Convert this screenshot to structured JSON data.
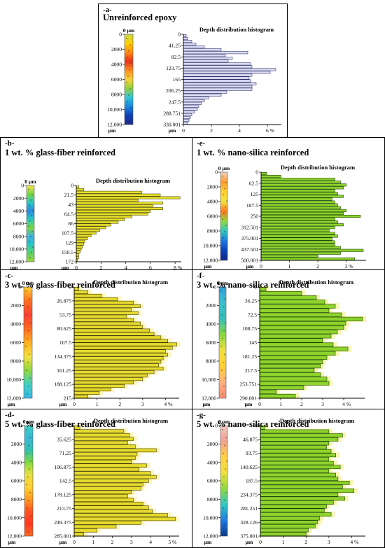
{
  "chart_data": [
    {
      "id": "a",
      "type": "bar",
      "orientation": "horizontal",
      "panel_label": "-a-",
      "title": "Unreinforced epoxy",
      "histogram_title": "Depth distribution histogram",
      "depth_axis": {
        "top_label": "0 µm",
        "ticks": [
          "0",
          "2000",
          "4000",
          "6000",
          "8000",
          "10,000",
          "12,000"
        ],
        "unit": "µm"
      },
      "x": {
        "ticks": [
          "0",
          "2",
          "4",
          "6 %"
        ],
        "unit": "µm",
        "max": 7
      },
      "y": {
        "ticks": [
          "0",
          "41.25",
          "82.5",
          "123.75",
          "165",
          "206.25",
          "247.5",
          "288.751",
          "330.001"
        ],
        "max": 330.001
      },
      "colors": {
        "bar": "#d9dcf2",
        "edge": "#2a2a66",
        "glow": null
      },
      "values": [
        0.2,
        0.3,
        0.6,
        0.9,
        1.5,
        2.7,
        4.6,
        3.0,
        3.5,
        3.2,
        4.8,
        4.9,
        6.6,
        6.2,
        4.9,
        4.7,
        4.8,
        5.2,
        4.9,
        4.9,
        3.1,
        2.7,
        1.8,
        1.5,
        1.3,
        1.1,
        1.0,
        0.8,
        0.6,
        0.5,
        0.4,
        0.3
      ],
      "stripe": [
        "#c9d84a",
        "#ffd000",
        "#ff8a10",
        "#e8301c",
        "#ff9020",
        "#f7d23a",
        "#8fd13e",
        "#33c6d8",
        "#1a86e0",
        "#1040b8",
        "#1c2888"
      ]
    },
    {
      "id": "b",
      "type": "bar",
      "orientation": "horizontal",
      "panel_label": "-b-",
      "title": "1 wt. % glass-fiber reinforced",
      "histogram_title": "Depth distribution histogram",
      "depth_axis": {
        "top_label": "0 µm",
        "ticks": [
          "0",
          "2000",
          "4000",
          "6000",
          "8000",
          "10,000",
          "12,000"
        ],
        "unit": "µm"
      },
      "x": {
        "ticks": [
          "0",
          "2",
          "4",
          "6",
          "8 %"
        ],
        "unit": "µm",
        "max": 8.5
      },
      "y": {
        "ticks": [
          "0",
          "21.5",
          "43",
          "64.5",
          "86",
          "107.5",
          "129",
          "150.5",
          "172"
        ],
        "max": 172
      },
      "colors": {
        "bar": "#e8df2a",
        "edge": "#3a3a00",
        "glow": null
      },
      "values": [
        0.2,
        0.6,
        5.3,
        6.8,
        8.4,
        5.0,
        7.0,
        6.2,
        7.0,
        6.0,
        5.8,
        4.5,
        3.9,
        3.4,
        2.8,
        2.4,
        1.9,
        1.6,
        1.2,
        0.9,
        0.7,
        0.6,
        0.5,
        0.4,
        0.3,
        0.2,
        0.2,
        0.1
      ],
      "stripe": [
        "#f3e04a",
        "#7ad840",
        "#28c9c4",
        "#2b86e0",
        "#28c9c4",
        "#7ad840",
        "#3fb0e0",
        "#28c9c4",
        "#5fd060",
        "#9ad63a"
      ]
    },
    {
      "id": "c",
      "type": "bar",
      "orientation": "horizontal",
      "panel_label": "-c-",
      "title": "3 wt. % glass-fiber reinforced",
      "histogram_title": "Depth distribution histogram",
      "depth_axis": {
        "top_label": "0 µm",
        "ticks": [
          "0",
          "2000",
          "4000",
          "6000",
          "8000",
          "10,000",
          "12,000"
        ],
        "unit": "µm"
      },
      "x": {
        "ticks": [
          "0",
          "1",
          "2",
          "3",
          "4 %"
        ],
        "unit": "µm",
        "max": 4.6
      },
      "y": {
        "ticks": [
          "0",
          "26.875",
          "53.75",
          "80.625",
          "107.5",
          "134.375",
          "161.25",
          "188.125",
          "215"
        ],
        "max": 215
      },
      "colors": {
        "bar": "#e6da2e",
        "edge": "#333300",
        "glow": "#fff1a8"
      },
      "values": [
        0.2,
        0.6,
        1.2,
        1.9,
        2.6,
        2.9,
        2.5,
        2.8,
        2.3,
        2.6,
        2.9,
        3.0,
        3.3,
        3.5,
        3.8,
        4.1,
        4.5,
        4.3,
        4.0,
        4.1,
        3.9,
        3.8,
        3.7,
        3.9,
        3.5,
        3.2,
        3.0,
        2.6,
        2.2,
        1.6,
        1.1,
        0.6
      ],
      "stripe": [
        "#ffd030",
        "#ff7020",
        "#ff4030",
        "#ff6a20",
        "#ffb020",
        "#f6e040",
        "#90d840",
        "#40d0c0",
        "#38b8e8"
      ]
    },
    {
      "id": "d",
      "type": "bar",
      "orientation": "horizontal",
      "panel_label": "-d-",
      "title": "5 wt. % glass-fiber reinforced",
      "histogram_title": "Depth distribution histogram",
      "depth_axis": {
        "top_label": "0 µm",
        "ticks": [
          "0",
          "2000",
          "4000",
          "6000",
          "8000",
          "10,000",
          "12,000"
        ],
        "unit": "µm"
      },
      "x": {
        "ticks": [
          "0",
          "1",
          "2",
          "3",
          "4",
          "5 %"
        ],
        "unit": "µm",
        "max": 5.5
      },
      "y": {
        "ticks": [
          "0",
          "35.625",
          "71.25",
          "106.875",
          "142.5",
          "178.125",
          "213.75",
          "249.375",
          "285.001"
        ],
        "max": 285.001
      },
      "colors": {
        "bar": "#e6da2e",
        "edge": "#333300",
        "glow": "#fff1a8"
      },
      "values": [
        0.3,
        2.6,
        2.9,
        3.1,
        2.8,
        3.2,
        4.3,
        3.3,
        3.2,
        3.0,
        3.8,
        3.4,
        4.0,
        4.3,
        3.9,
        3.6,
        3.5,
        3.0,
        2.8,
        3.1,
        3.6,
        3.9,
        4.1,
        4.9,
        5.3,
        3.5,
        2.2,
        1.2,
        0.5
      ],
      "stripe": [
        "#3ad0c0",
        "#3ab8d8",
        "#30c0b0",
        "#80d840",
        "#e8e040",
        "#ffd030",
        "#ff9a20",
        "#ff5020",
        "#ff3a20",
        "#ff6a20"
      ]
    },
    {
      "id": "e",
      "type": "bar",
      "orientation": "horizontal",
      "panel_label": "-e-",
      "title": "1 wt. % nano-silica reinforced",
      "histogram_title": "Depth distribution histogram",
      "depth_axis": {
        "top_label": "0 µm",
        "ticks": [
          "0",
          "2000",
          "4000",
          "6000",
          "8000",
          "10,000",
          "12,000"
        ],
        "unit": "µm"
      },
      "x": {
        "ticks": [
          "0",
          "1",
          "2",
          "3 %"
        ],
        "unit": "µm",
        "max": 3.7
      },
      "y": {
        "ticks": [
          "0",
          "62.5",
          "125",
          "187.5",
          "250",
          "312.501",
          "375.001",
          "437.501",
          "500.001"
        ],
        "max": 500.001
      },
      "colors": {
        "bar": "#8ed22c",
        "edge": "#0f3a00",
        "glow": null
      },
      "values": [
        0.2,
        0.7,
        2.6,
        2.8,
        3.0,
        2.9,
        2.6,
        2.7,
        2.9,
        2.5,
        2.6,
        2.7,
        2.8,
        3.0,
        2.9,
        3.5,
        2.6,
        2.7,
        2.9,
        2.6,
        2.4,
        2.6,
        2.7,
        2.5,
        2.6,
        2.6,
        2.8,
        3.6,
        2.8,
        2.0,
        3.3
      ],
      "stripe": [
        "#f4d2c0",
        "#ff9a30",
        "#ffd030",
        "#f0e040",
        "#ff7a20",
        "#90d840",
        "#30c8c0",
        "#1e7ae0",
        "#0a40b8",
        "#10288a"
      ]
    },
    {
      "id": "f",
      "type": "bar",
      "orientation": "horizontal",
      "panel_label": "-f-",
      "title": "3 wt. % nano-silica reinforced",
      "histogram_title": "Depth distribution histogram",
      "depth_axis": {
        "top_label": "0 µm",
        "ticks": [
          "0",
          "2000",
          "4000",
          "6000",
          "8000",
          "10,000",
          "12,000"
        ],
        "unit": "µm"
      },
      "x": {
        "ticks": [
          "0",
          "1",
          "2",
          "3",
          "4 %"
        ],
        "unit": "µm",
        "max": 5.0
      },
      "y": {
        "ticks": [
          "0",
          "36.25",
          "72.5",
          "108.75",
          "145",
          "181.25",
          "217.5",
          "253.751",
          "290.001"
        ],
        "max": 290.001
      },
      "colors": {
        "bar": "#8ed22c",
        "edge": "#0f3a00",
        "glow": "#f6f29a"
      },
      "values": [
        0.3,
        2.0,
        2.7,
        3.1,
        3.6,
        3.3,
        3.9,
        4.9,
        4.1,
        4.0,
        3.7,
        3.4,
        3.0,
        3.5,
        4.2,
        3.6,
        3.2,
        3.0,
        2.9,
        2.6,
        2.9,
        3.2,
        3.3,
        2.1,
        0.8,
        1.7
      ],
      "stripe": [
        "#30a0d8",
        "#3cc0d0",
        "#36c0b8",
        "#8ad840",
        "#f0e040",
        "#ffd030",
        "#ffb080",
        "#ff8a70"
      ]
    },
    {
      "id": "g",
      "type": "bar",
      "orientation": "horizontal",
      "panel_label": "-g-",
      "title": "5 wt. % nano-silica reinforced",
      "histogram_title": "Depth distribution histogram",
      "depth_axis": {
        "top_label": "0 µm",
        "ticks": [
          "0",
          "2000",
          "4000",
          "6000",
          "8000",
          "10,000",
          "12,000"
        ],
        "unit": "µm"
      },
      "x": {
        "ticks": [
          "0",
          "1",
          "2",
          "3",
          "4 %"
        ],
        "unit": "µm",
        "max": 4.6
      },
      "y": {
        "ticks": [
          "0",
          "46.875",
          "93.75",
          "140.625",
          "187.5",
          "234.375",
          "281.251",
          "328.126",
          "375.001"
        ],
        "max": 375.001
      },
      "colors": {
        "bar": "#8ed22c",
        "edge": "#0f3a00",
        "glow": "#f6f29a"
      },
      "values": [
        0.2,
        3.0,
        3.6,
        3.4,
        3.0,
        2.9,
        3.1,
        3.3,
        3.0,
        3.2,
        3.5,
        3.0,
        3.3,
        3.4,
        3.9,
        3.6,
        4.1,
        3.4,
        3.7,
        3.2,
        2.9,
        2.8,
        3.1,
        2.6,
        2.5,
        2.4,
        2.1,
        2.0
      ],
      "stripe": [
        "#f2c8c0",
        "#f0a090",
        "#ffd040",
        "#f0e040",
        "#90d840",
        "#30c8c0",
        "#1e7ae0",
        "#0a3a8a"
      ]
    }
  ]
}
